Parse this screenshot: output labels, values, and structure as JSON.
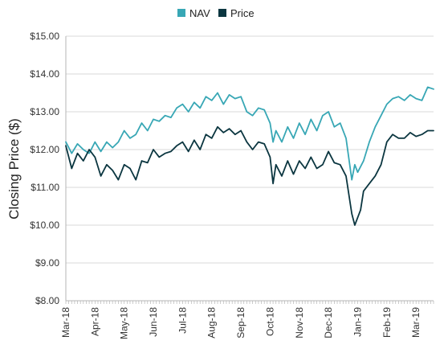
{
  "chart_data": {
    "type": "line",
    "title": "",
    "xlabel": "",
    "ylabel": "Closing Price ($)",
    "ylim": [
      8,
      15
    ],
    "y_ticks": [
      "$15.00",
      "$14.00",
      "$13.00",
      "$12.00",
      "$11.00",
      "$10.00",
      "$9.00",
      "$8.00"
    ],
    "y_tick_values": [
      15,
      14,
      13,
      12,
      11,
      10,
      9,
      8
    ],
    "x_ticks": [
      "Mar-18",
      "Apr-18",
      "May-18",
      "Jun-18",
      "Jul-18",
      "Aug-18",
      "Sep-18",
      "Oct-18",
      "Nov-18",
      "Dec-18",
      "Jan-19",
      "Feb-19",
      "Mar-19"
    ],
    "x_range_months": [
      0,
      12.6
    ],
    "grid": "horizontal",
    "legend_position": "top-center",
    "series": [
      {
        "name": "NAV",
        "color": "#38a7b5",
        "x": [
          0,
          0.2,
          0.4,
          0.6,
          0.8,
          1.0,
          1.2,
          1.4,
          1.6,
          1.8,
          2.0,
          2.2,
          2.4,
          2.6,
          2.8,
          3.0,
          3.2,
          3.4,
          3.6,
          3.8,
          4.0,
          4.2,
          4.4,
          4.6,
          4.8,
          5.0,
          5.2,
          5.4,
          5.6,
          5.8,
          6.0,
          6.2,
          6.4,
          6.6,
          6.8,
          7.0,
          7.1,
          7.2,
          7.4,
          7.6,
          7.8,
          8.0,
          8.2,
          8.4,
          8.6,
          8.8,
          9.0,
          9.2,
          9.4,
          9.6,
          9.8,
          9.9,
          10.0,
          10.2,
          10.4,
          10.6,
          10.8,
          11.0,
          11.2,
          11.4,
          11.6,
          11.8,
          12.0,
          12.2,
          12.4,
          12.6
        ],
        "values": [
          12.2,
          11.9,
          12.15,
          12.0,
          11.9,
          12.2,
          11.95,
          12.2,
          12.05,
          12.2,
          12.5,
          12.3,
          12.4,
          12.7,
          12.5,
          12.8,
          12.75,
          12.9,
          12.85,
          13.1,
          13.2,
          13.0,
          13.25,
          13.1,
          13.4,
          13.3,
          13.5,
          13.2,
          13.45,
          13.35,
          13.4,
          13.0,
          12.9,
          13.1,
          13.05,
          12.7,
          12.2,
          12.5,
          12.2,
          12.6,
          12.3,
          12.7,
          12.4,
          12.8,
          12.5,
          12.9,
          13.0,
          12.6,
          12.7,
          12.3,
          11.2,
          11.6,
          11.4,
          11.7,
          12.2,
          12.6,
          12.9,
          13.2,
          13.35,
          13.4,
          13.3,
          13.45,
          13.35,
          13.3,
          13.65,
          13.6
        ]
      },
      {
        "name": "Price",
        "color": "#0b3640",
        "x": [
          0,
          0.2,
          0.4,
          0.6,
          0.8,
          1.0,
          1.2,
          1.4,
          1.6,
          1.8,
          2.0,
          2.2,
          2.4,
          2.6,
          2.8,
          3.0,
          3.2,
          3.4,
          3.6,
          3.8,
          4.0,
          4.2,
          4.4,
          4.6,
          4.8,
          5.0,
          5.2,
          5.4,
          5.6,
          5.8,
          6.0,
          6.2,
          6.4,
          6.6,
          6.8,
          7.0,
          7.1,
          7.2,
          7.4,
          7.6,
          7.8,
          8.0,
          8.2,
          8.4,
          8.6,
          8.8,
          9.0,
          9.2,
          9.4,
          9.6,
          9.8,
          9.9,
          10.0,
          10.1,
          10.2,
          10.4,
          10.6,
          10.8,
          11.0,
          11.2,
          11.4,
          11.6,
          11.8,
          12.0,
          12.2,
          12.4,
          12.6
        ],
        "values": [
          12.1,
          11.5,
          11.9,
          11.7,
          12.0,
          11.8,
          11.3,
          11.6,
          11.45,
          11.2,
          11.6,
          11.5,
          11.2,
          11.7,
          11.65,
          12.0,
          11.8,
          11.9,
          11.95,
          12.1,
          12.2,
          11.95,
          12.25,
          12.0,
          12.4,
          12.3,
          12.6,
          12.45,
          12.55,
          12.4,
          12.5,
          12.2,
          12.0,
          12.2,
          12.15,
          11.8,
          11.1,
          11.6,
          11.3,
          11.7,
          11.35,
          11.7,
          11.5,
          11.8,
          11.5,
          11.6,
          11.95,
          11.65,
          11.6,
          11.3,
          10.3,
          10.0,
          10.2,
          10.4,
          10.9,
          11.1,
          11.3,
          11.6,
          12.2,
          12.4,
          12.3,
          12.3,
          12.45,
          12.35,
          12.4,
          12.5,
          12.5
        ]
      }
    ]
  }
}
